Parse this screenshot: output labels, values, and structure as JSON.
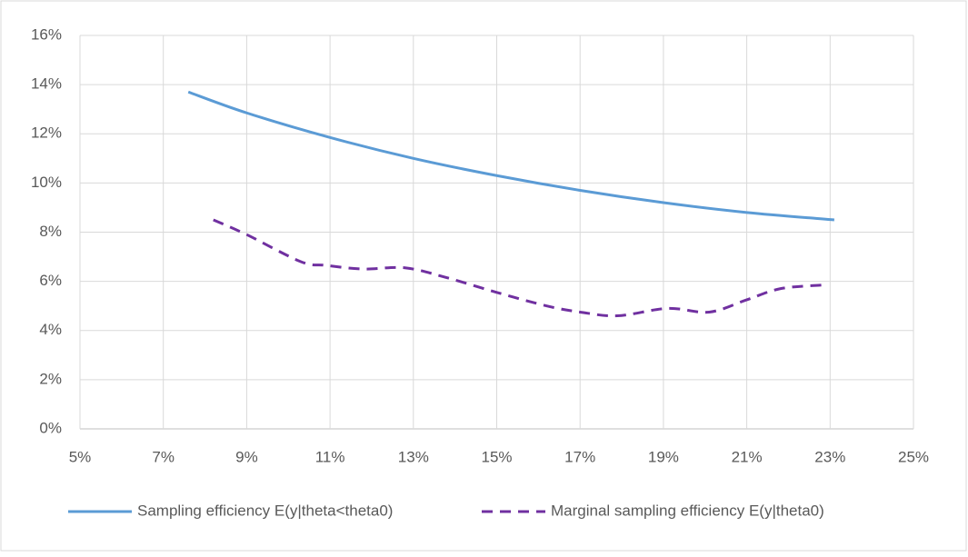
{
  "chart_data": {
    "type": "line",
    "xlim": [
      5,
      25
    ],
    "xticks": [
      {
        "value": 5,
        "label": "5%"
      },
      {
        "value": 7,
        "label": "7%"
      },
      {
        "value": 9,
        "label": "9%"
      },
      {
        "value": 11,
        "label": "11%"
      },
      {
        "value": 13,
        "label": "13%"
      },
      {
        "value": 15,
        "label": "15%"
      },
      {
        "value": 17,
        "label": "17%"
      },
      {
        "value": 19,
        "label": "19%"
      },
      {
        "value": 21,
        "label": "21%"
      },
      {
        "value": 23,
        "label": "23%"
      },
      {
        "value": 25,
        "label": "25%"
      }
    ],
    "ylim": [
      0,
      16
    ],
    "yticks": [
      {
        "value": 0,
        "label": "0%"
      },
      {
        "value": 2,
        "label": "2%"
      },
      {
        "value": 4,
        "label": "4%"
      },
      {
        "value": 6,
        "label": "6%"
      },
      {
        "value": 8,
        "label": "8%"
      },
      {
        "value": 10,
        "label": "10%"
      },
      {
        "value": 12,
        "label": "12%"
      },
      {
        "value": 14,
        "label": "14%"
      },
      {
        "value": 16,
        "label": "16%"
      }
    ],
    "grid": true,
    "legend": "bottom",
    "series": [
      {
        "name": "Sampling efficiency E(y|theta<theta0)",
        "color": "#5b9bd5",
        "dash": false,
        "x": [
          7.6,
          9,
          11,
          13,
          15,
          17,
          19,
          21,
          23.1
        ],
        "values": [
          13.7,
          12.85,
          11.85,
          11.0,
          10.3,
          9.7,
          9.2,
          8.8,
          8.5
        ]
      },
      {
        "name": "Marginal sampling efficiency E(y|theta0)",
        "color": "#7030a0",
        "dash": true,
        "x": [
          8.2,
          9.0,
          10.3,
          10.9,
          11.8,
          12.8,
          13.8,
          15.0,
          16.2,
          17.0,
          17.9,
          19.1,
          20.1,
          21.0,
          21.8,
          22.8
        ],
        "values": [
          8.5,
          7.9,
          6.8,
          6.65,
          6.5,
          6.55,
          6.15,
          5.55,
          5.0,
          4.75,
          4.6,
          4.9,
          4.75,
          5.25,
          5.7,
          5.85
        ]
      }
    ]
  }
}
